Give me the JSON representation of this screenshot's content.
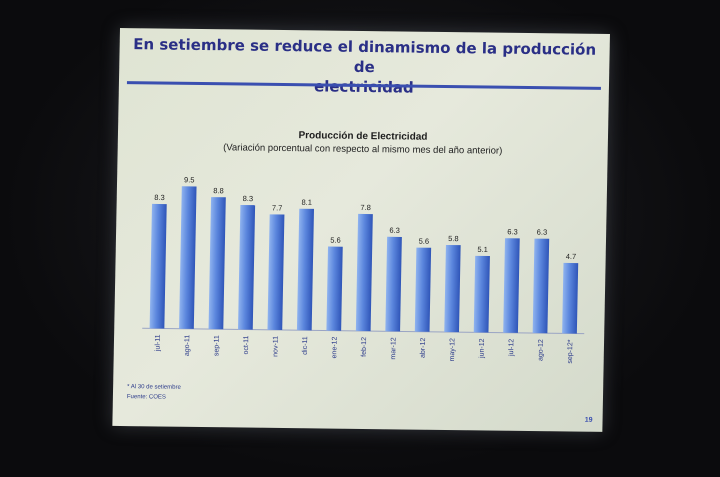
{
  "slide": {
    "title_line1": "En setiembre se reduce el dinamismo de la producción de",
    "title_line2": "electricidad",
    "footnote1": "* Al 30 de setiembre",
    "footnote2": "Fuente: COES",
    "page_number": "19"
  },
  "colors": {
    "title": "#2a2f86",
    "bar_light": "#8fb3ef",
    "bar_dark": "#3a62c8",
    "rule": "#3a4fb0"
  },
  "chart_data": {
    "type": "bar",
    "title": "Producción de Electricidad",
    "subtitle": "(Variación porcentual con respecto al mismo mes del año anterior)",
    "categories": [
      "jul-11",
      "ago-11",
      "sep-11",
      "oct-11",
      "nov-11",
      "dic-11",
      "ene-12",
      "feb-12",
      "mar-12",
      "abr-12",
      "may-12",
      "jun-12",
      "jul-12",
      "ago-12",
      "sep-12*"
    ],
    "values": [
      8.3,
      9.5,
      8.8,
      8.3,
      7.7,
      8.1,
      5.6,
      7.8,
      6.3,
      5.6,
      5.8,
      5.1,
      6.3,
      6.3,
      4.7
    ],
    "value_labels": [
      "8.3",
      "9.5",
      "8.8",
      "8.3",
      "7.7",
      "8.1",
      "5.6",
      "7.8",
      "6.3",
      "5.6",
      "5.8",
      "5.1",
      "6.3",
      "6.3",
      "4.7"
    ],
    "ylim": [
      0,
      10
    ],
    "xlabel": "",
    "ylabel": "",
    "grid": false,
    "legend": "none"
  }
}
